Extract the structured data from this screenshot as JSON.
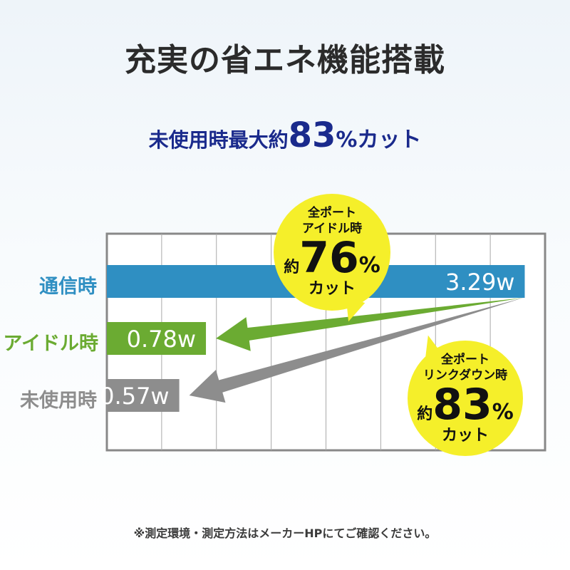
{
  "title": "充実の省エネ機能搭載",
  "subtitle": {
    "prefix": "未使用時最大約",
    "number": "83",
    "suffix": "%カット"
  },
  "chart_data": {
    "type": "bar",
    "orientation": "horizontal",
    "categories": [
      "通信時",
      "アイドル時",
      "未使用時"
    ],
    "values": [
      3.29,
      0.78,
      0.57
    ],
    "value_labels": [
      "3.29w",
      "0.78w",
      "0.57w"
    ],
    "colors": [
      "#2f8fc2",
      "#6bab32",
      "#8d8d8d"
    ],
    "xlim": [
      0,
      3.45
    ],
    "grid": true
  },
  "callouts": [
    {
      "line1": "全ポート",
      "line2": "アイドル時",
      "prefix": "約",
      "number": "76",
      "suffix": "%",
      "cut": "カット"
    },
    {
      "line1": "全ポート",
      "line2": "リンクダウン時",
      "prefix": "約",
      "number": "83",
      "suffix": "%",
      "cut": "カット"
    }
  ],
  "footnote": "※測定環境・測定方法はメーカーHPにてご確認ください。"
}
